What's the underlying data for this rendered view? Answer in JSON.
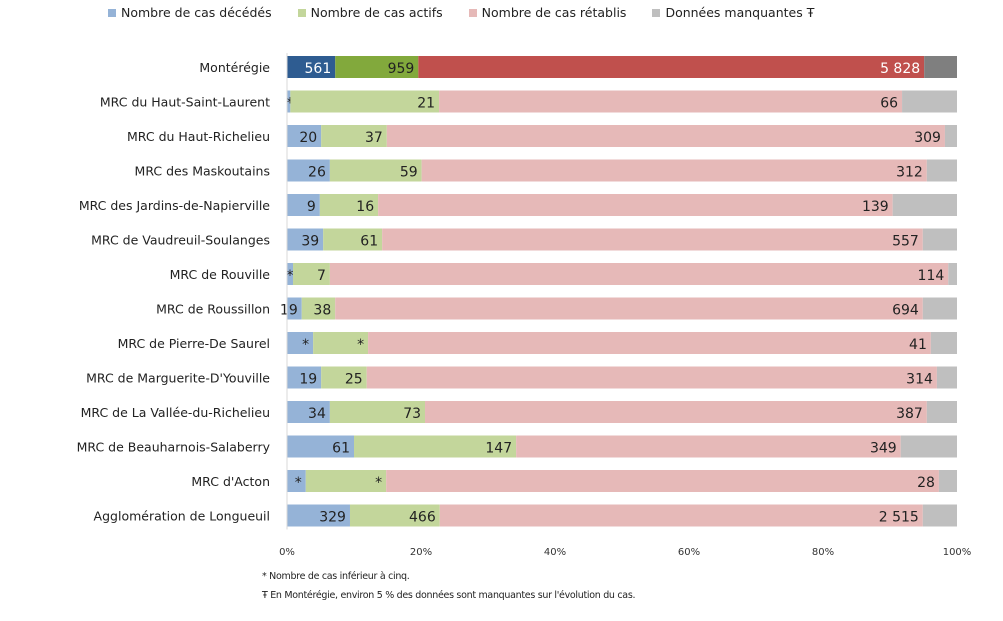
{
  "chart_data": {
    "type": "bar",
    "orientation": "horizontal",
    "stacked": "100%",
    "categories": [
      "Montérégie",
      "MRC du Haut-Saint-Laurent",
      "MRC du Haut-Richelieu",
      "MRC des Maskoutains",
      "MRC des Jardins-de-Napierville",
      "MRC de Vaudreuil-Soulanges",
      "MRC de Rouville",
      "MRC de Roussillon",
      "MRC de Pierre-De Saurel",
      "MRC de Marguerite-D'Youville",
      "MRC de La Vallée-du-Richelieu",
      "MRC de Beauharnois-Salaberry",
      "MRC d'Acton",
      "Agglomération de Longueuil"
    ],
    "series": [
      {
        "name": "Nombre de cas décédés",
        "color": "#95b3d7",
        "highlight_color": "#2e5c91",
        "share_pct": [
          7.2,
          0.5,
          5.1,
          6.4,
          4.9,
          5.4,
          0.9,
          2.2,
          3.9,
          5.1,
          6.4,
          10.0,
          2.8,
          9.4
        ],
        "labels": [
          "561",
          "*",
          "20",
          "26",
          "9",
          "39",
          "*",
          "19",
          "*",
          "19",
          "34",
          "61",
          "*",
          "329"
        ]
      },
      {
        "name": "Nombre de cas actifs",
        "color": "#c3d69b",
        "highlight_color": "#82a93c",
        "share_pct": [
          12.4,
          22.2,
          9.8,
          13.7,
          8.7,
          8.8,
          5.5,
          5.0,
          8.2,
          6.8,
          14.2,
          24.2,
          12.0,
          13.4
        ],
        "labels": [
          "959",
          "21",
          "37",
          "59",
          "16",
          "61",
          "7",
          "38",
          "*",
          "25",
          "73",
          "147",
          "*",
          "466"
        ]
      },
      {
        "name": "Nombre de cas rétablis",
        "color": "#e6b9b8",
        "highlight_color": "#c0504d",
        "share_pct": [
          75.5,
          69.1,
          83.3,
          75.4,
          76.8,
          80.7,
          92.3,
          87.7,
          84.0,
          85.1,
          74.9,
          57.4,
          82.5,
          72.1
        ],
        "labels": [
          "5 828",
          "66",
          "309",
          "312",
          "139",
          "557",
          "114",
          "694",
          "41",
          "314",
          "387",
          "349",
          "28",
          "2 515"
        ]
      },
      {
        "name": "Données manquantes Ŧ",
        "color": "#bfbfbf",
        "highlight_color": "#7f7f7f",
        "share_pct": [
          4.9,
          8.2,
          1.8,
          4.5,
          9.6,
          5.1,
          1.3,
          5.1,
          3.9,
          3.0,
          4.5,
          8.4,
          2.7,
          5.1
        ],
        "labels": [
          "",
          "",
          "",
          "",
          "",
          "",
          "",
          "",
          "",
          "",
          "",
          "",
          "",
          ""
        ]
      }
    ],
    "xlim": [
      0,
      100
    ],
    "xticks": [
      "0%",
      "20%",
      "40%",
      "60%",
      "80%",
      "100%"
    ],
    "legend_position": "top",
    "grid": false,
    "footnotes": [
      "* Nombre de cas inférieur à cinq.",
      "Ŧ En Montérégie, environ 5 % des données sont manquantes sur l'évolution du cas."
    ]
  }
}
